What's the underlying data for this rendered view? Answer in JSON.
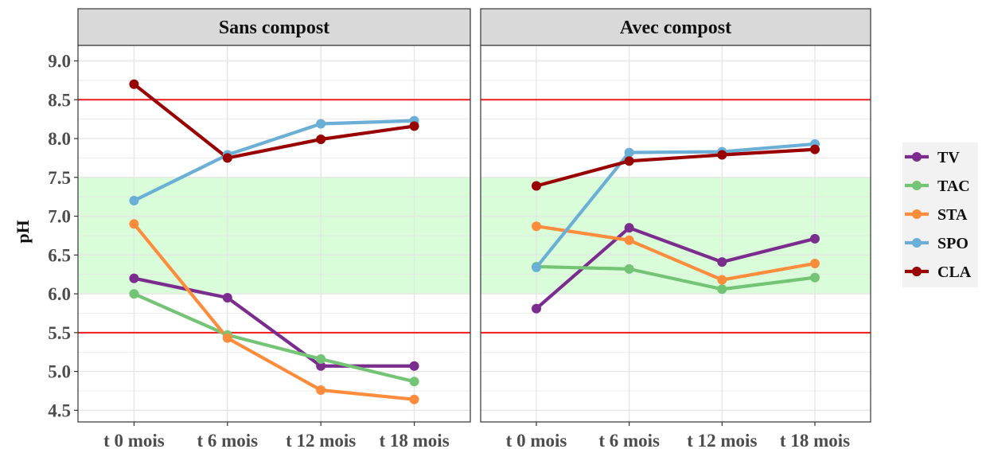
{
  "chart_data": {
    "type": "line",
    "ylabel": "pH",
    "xlabel": "",
    "categories": [
      "t 0 mois",
      "t 6 mois",
      "t 12 mois",
      "t 18 mois"
    ],
    "ylim": [
      4.35,
      9.2
    ],
    "yticks": [
      "4.5",
      "5.0",
      "5.5",
      "6.0",
      "6.5",
      "7.0",
      "7.5",
      "8.0",
      "8.5",
      "9.0"
    ],
    "grid": true,
    "legend_position": "right",
    "reference_lines": [
      5.5,
      8.5
    ],
    "reference_line_color": "#ee1c1c",
    "shaded_band": [
      6.0,
      7.5
    ],
    "shaded_band_color": "#d8fdd8",
    "legend": [
      {
        "name": "TV",
        "color": "#7b2d8e"
      },
      {
        "name": "TAC",
        "color": "#74c476"
      },
      {
        "name": "STA",
        "color": "#fd8d3c"
      },
      {
        "name": "SPO",
        "color": "#6baed6"
      },
      {
        "name": "CLA",
        "color": "#990000"
      }
    ],
    "panels": [
      {
        "title": "Sans compost",
        "series": [
          {
            "name": "TV",
            "values": [
              6.2,
              5.95,
              5.07,
              5.07
            ]
          },
          {
            "name": "TAC",
            "values": [
              6.0,
              5.47,
              5.16,
              4.87
            ]
          },
          {
            "name": "STA",
            "values": [
              6.9,
              5.43,
              4.76,
              4.64
            ]
          },
          {
            "name": "SPO",
            "values": [
              7.2,
              7.79,
              8.19,
              8.23
            ]
          },
          {
            "name": "CLA",
            "values": [
              8.7,
              7.75,
              7.99,
              8.16
            ]
          }
        ]
      },
      {
        "title": "Avec compost",
        "series": [
          {
            "name": "TV",
            "values": [
              5.81,
              6.85,
              6.41,
              6.71
            ]
          },
          {
            "name": "TAC",
            "values": [
              6.35,
              6.32,
              6.06,
              6.21
            ]
          },
          {
            "name": "STA",
            "values": [
              6.87,
              6.69,
              6.18,
              6.39
            ]
          },
          {
            "name": "SPO",
            "values": [
              6.34,
              7.82,
              7.83,
              7.93
            ]
          },
          {
            "name": "CLA",
            "values": [
              7.39,
              7.71,
              7.79,
              7.86
            ]
          }
        ]
      }
    ]
  }
}
